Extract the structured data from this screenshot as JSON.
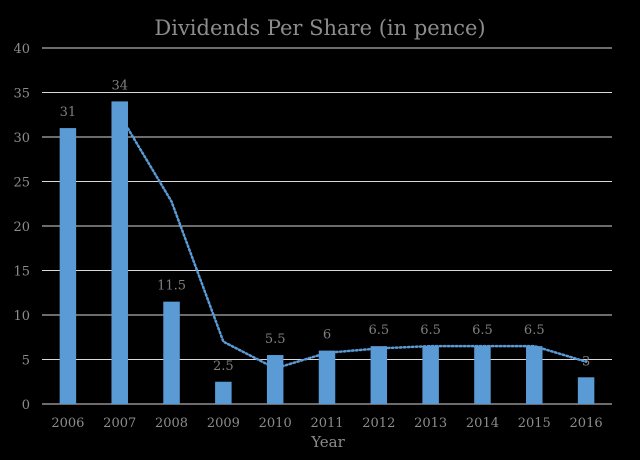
{
  "chart_data": {
    "type": "bar",
    "title": "Dividends Per Share (in pence)",
    "xlabel": "Year",
    "ylabel": "",
    "categories": [
      "2006",
      "2007",
      "2008",
      "2009",
      "2010",
      "2011",
      "2012",
      "2013",
      "2014",
      "2015",
      "2016"
    ],
    "values": [
      31,
      34,
      11.5,
      2.5,
      5.5,
      6,
      6.5,
      6.5,
      6.5,
      6.5,
      3
    ],
    "data_labels": [
      "31",
      "34",
      "11.5",
      "2.5",
      "5.5",
      "6",
      "6.5",
      "6.5",
      "6.5",
      "6.5",
      "3"
    ],
    "ylim": [
      0,
      40
    ],
    "yticks": [
      "0",
      "5",
      "10",
      "15",
      "20",
      "25",
      "30",
      "35",
      "40"
    ],
    "grid": true,
    "trendline": {
      "type": "moving average (2 periods)",
      "style": "dotted",
      "values": [
        null,
        32.5,
        22.75,
        7,
        4,
        5.75,
        6.25,
        6.5,
        6.5,
        6.5,
        4.75
      ]
    },
    "colors": {
      "bar": "#5b9bd5",
      "trendline": "#5b9bd5",
      "grid": "#d9d9d9",
      "background": "#000000"
    }
  }
}
